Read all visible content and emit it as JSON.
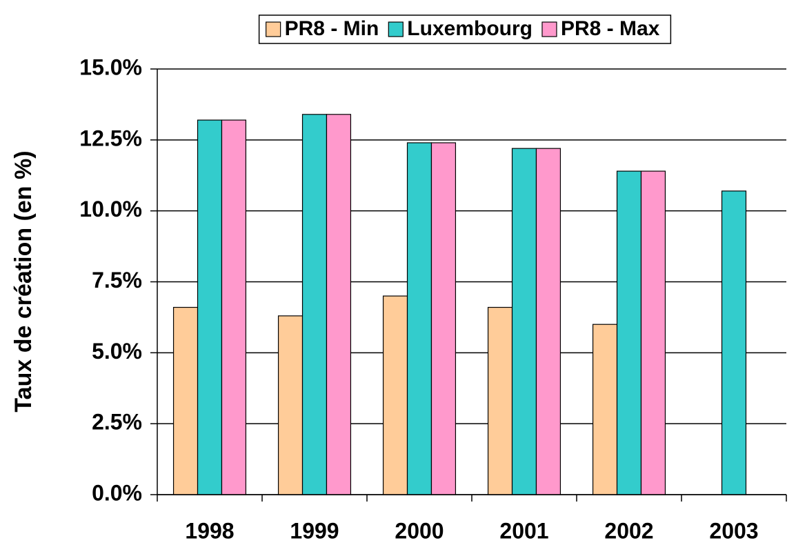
{
  "chart_data": {
    "type": "bar",
    "y_label": "Taux de création (en %)",
    "categories": [
      "1998",
      "1999",
      "2000",
      "2001",
      "2002",
      "2003"
    ],
    "series": [
      {
        "name": "PR8 - Min",
        "color": "#FFCC99",
        "values": [
          6.6,
          6.3,
          7.0,
          6.6,
          6.0,
          null
        ]
      },
      {
        "name": "Luxembourg",
        "color": "#33CCCC",
        "values": [
          13.2,
          13.4,
          12.4,
          12.2,
          11.4,
          10.7
        ]
      },
      {
        "name": "PR8 - Max",
        "color": "#FF99CC",
        "values": [
          13.2,
          13.4,
          12.4,
          12.2,
          11.4,
          null
        ]
      }
    ],
    "ylim": [
      0,
      15
    ],
    "yticks": [
      {
        "value": 0,
        "label": "0.0%"
      },
      {
        "value": 2.5,
        "label": "2.5%"
      },
      {
        "value": 5,
        "label": "5.0%"
      },
      {
        "value": 7.5,
        "label": "7.5%"
      },
      {
        "value": 10,
        "label": "10.0%"
      },
      {
        "value": 12.5,
        "label": "12.5%"
      },
      {
        "value": 15,
        "label": "15.0%"
      }
    ],
    "grid": true,
    "legend": "top"
  }
}
